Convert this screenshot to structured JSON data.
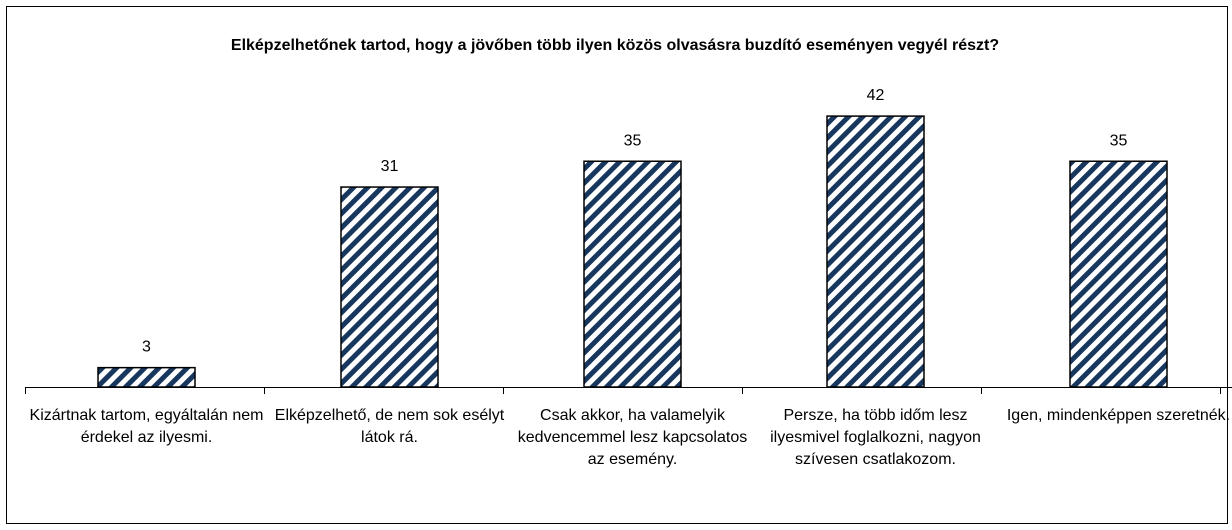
{
  "chart_data": {
    "type": "bar",
    "title": "Elképzelhetőnek tartod, hogy a jövőben több ilyen közös olvasásra buzdító eseményen vegyél részt?",
    "categories": [
      "Kizártnak tartom, egyáltalán nem érdekel az ilyesmi.",
      "Elképzelhető, de nem sok esélyt látok rá.",
      "Csak akkor, ha valamelyik kedvencemmel lesz kapcsolatos az esemény.",
      "Persze, ha több időm lesz ilyesmivel foglalkozni, nagyon szívesen csatlakozom.",
      "Igen, mindenképpen szeretnék."
    ],
    "values": [
      3,
      31,
      35,
      42,
      35
    ],
    "color": "#17375e",
    "ylim": [
      0,
      45
    ]
  }
}
